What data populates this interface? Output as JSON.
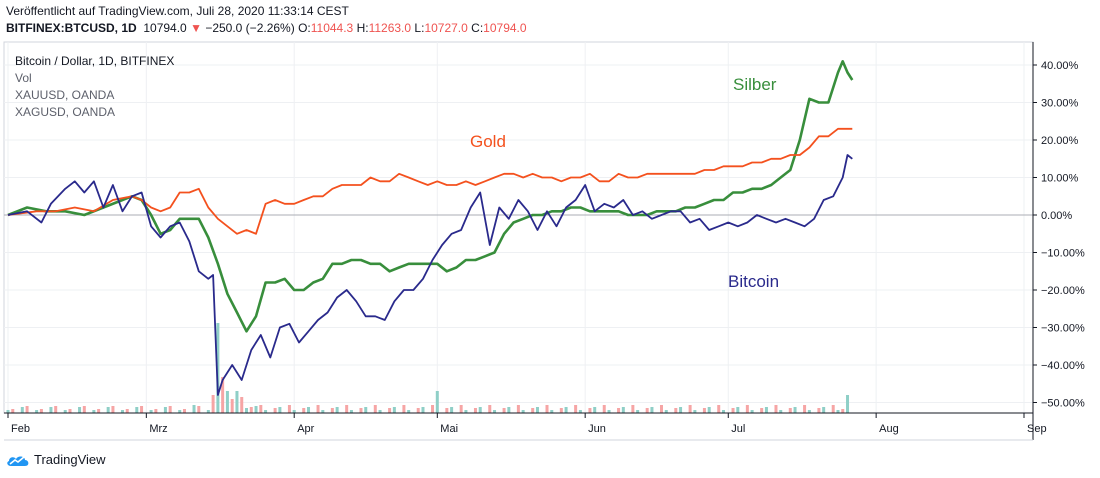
{
  "header": {
    "published": "Veröffentlicht auf TradingView.com, Juli 28, 2020 11:33:14 CEST",
    "symbol": "BITFINEX:BTCUSD, 1D",
    "last": "10794.0",
    "arrow": "▼",
    "change": "−250.0 (−2.26%)",
    "o_label": "O:",
    "o": "11044.3",
    "h_label": "H:",
    "h": "11263.0",
    "l_label": "L:",
    "l": "10727.0",
    "c_label": "C:",
    "c": "10794.0"
  },
  "legend": {
    "main": "Bitcoin / Dollar, 1D, BITFINEX",
    "vol": "Vol",
    "gold_symbol": "XAUUSD, OANDA",
    "silver_symbol": "XAGUSD, OANDA"
  },
  "brand": {
    "name": "TradingView"
  },
  "colors": {
    "bitcoin": "#2a2a8c",
    "gold": "#f4511e",
    "silver": "#388e3c",
    "vol_up": "#8fcfc7",
    "vol_down": "#f6a5a5",
    "grid": "#eef0f3",
    "axis": "#131722"
  },
  "chart_data": {
    "type": "line",
    "ylim": [
      -54,
      44
    ],
    "x_range": [
      0,
      220
    ],
    "y_ticks": [
      {
        "value": 40,
        "label": "40.00%"
      },
      {
        "value": 30,
        "label": "30.00%"
      },
      {
        "value": 20,
        "label": "20.00%"
      },
      {
        "value": 10,
        "label": "10.00%"
      },
      {
        "value": 0,
        "label": "0.00%"
      },
      {
        "value": -10,
        "label": "−10.00%"
      },
      {
        "value": -20,
        "label": "−20.00%"
      },
      {
        "value": -30,
        "label": "−30.00%"
      },
      {
        "value": -40,
        "label": "−40.00%"
      },
      {
        "value": -50,
        "label": "−50.00%"
      }
    ],
    "x_ticks": [
      {
        "day": 0,
        "label": "Feb"
      },
      {
        "day": 29,
        "label": "Mrz"
      },
      {
        "day": 60,
        "label": "Apr"
      },
      {
        "day": 90,
        "label": "Mai"
      },
      {
        "day": 121,
        "label": "Jun"
      },
      {
        "day": 151,
        "label": "Jul"
      },
      {
        "day": 182,
        "label": "Aug"
      },
      {
        "day": 213,
        "label": "Sep"
      }
    ],
    "series": [
      {
        "name": "Bitcoin",
        "key": "bitcoin",
        "points": [
          [
            0,
            0
          ],
          [
            4,
            1
          ],
          [
            7,
            -2
          ],
          [
            9,
            3
          ],
          [
            12,
            7
          ],
          [
            14,
            9
          ],
          [
            16,
            6
          ],
          [
            18,
            9
          ],
          [
            20,
            2
          ],
          [
            22,
            8
          ],
          [
            24,
            1
          ],
          [
            26,
            5
          ],
          [
            28,
            6
          ],
          [
            30,
            -3
          ],
          [
            32,
            -6
          ],
          [
            34,
            -3
          ],
          [
            36,
            -2
          ],
          [
            38,
            -7
          ],
          [
            40,
            -15
          ],
          [
            42,
            -17
          ],
          [
            43,
            -16
          ],
          [
            44,
            -48
          ],
          [
            45,
            -44
          ],
          [
            47,
            -40
          ],
          [
            49,
            -44
          ],
          [
            51,
            -36
          ],
          [
            53,
            -32
          ],
          [
            55,
            -38
          ],
          [
            57,
            -30
          ],
          [
            59,
            -29
          ],
          [
            61,
            -34
          ],
          [
            63,
            -31
          ],
          [
            65,
            -28
          ],
          [
            67,
            -26
          ],
          [
            69,
            -22
          ],
          [
            71,
            -20
          ],
          [
            73,
            -23
          ],
          [
            75,
            -27
          ],
          [
            77,
            -27
          ],
          [
            79,
            -28
          ],
          [
            81,
            -23
          ],
          [
            83,
            -20
          ],
          [
            85,
            -20
          ],
          [
            87,
            -17
          ],
          [
            89,
            -12
          ],
          [
            91,
            -8
          ],
          [
            93,
            -5
          ],
          [
            95,
            -4
          ],
          [
            97,
            2
          ],
          [
            99,
            6
          ],
          [
            101,
            -8
          ],
          [
            103,
            2
          ],
          [
            105,
            -1
          ],
          [
            107,
            4
          ],
          [
            109,
            1
          ],
          [
            111,
            -4
          ],
          [
            113,
            1
          ],
          [
            115,
            -3
          ],
          [
            117,
            2
          ],
          [
            119,
            4
          ],
          [
            121,
            8
          ],
          [
            123,
            1
          ],
          [
            125,
            3
          ],
          [
            127,
            2
          ],
          [
            129,
            4
          ],
          [
            131,
            0
          ],
          [
            133,
            1
          ],
          [
            135,
            -1
          ],
          [
            137,
            0
          ],
          [
            139,
            1
          ],
          [
            141,
            1
          ],
          [
            143,
            -2
          ],
          [
            145,
            -1
          ],
          [
            147,
            -4
          ],
          [
            149,
            -3
          ],
          [
            151,
            -2
          ],
          [
            153,
            -3
          ],
          [
            155,
            -2
          ],
          [
            157,
            0
          ],
          [
            159,
            -1
          ],
          [
            161,
            -2
          ],
          [
            163,
            -1
          ],
          [
            165,
            -2
          ],
          [
            167,
            -3
          ],
          [
            169,
            -1
          ],
          [
            171,
            4
          ],
          [
            173,
            5
          ],
          [
            175,
            10
          ],
          [
            176,
            16
          ],
          [
            177,
            15
          ]
        ]
      },
      {
        "name": "Gold",
        "key": "gold",
        "points": [
          [
            0,
            0
          ],
          [
            6,
            1
          ],
          [
            10,
            1
          ],
          [
            14,
            2
          ],
          [
            18,
            1
          ],
          [
            22,
            4
          ],
          [
            26,
            5
          ],
          [
            28,
            4
          ],
          [
            30,
            2
          ],
          [
            32,
            1
          ],
          [
            34,
            2
          ],
          [
            36,
            6
          ],
          [
            38,
            6
          ],
          [
            40,
            7
          ],
          [
            42,
            2
          ],
          [
            44,
            -1
          ],
          [
            46,
            -3
          ],
          [
            48,
            -5
          ],
          [
            50,
            -4
          ],
          [
            52,
            -5
          ],
          [
            54,
            3
          ],
          [
            56,
            4
          ],
          [
            58,
            3
          ],
          [
            60,
            3
          ],
          [
            62,
            4
          ],
          [
            64,
            5
          ],
          [
            66,
            5
          ],
          [
            68,
            7
          ],
          [
            70,
            8
          ],
          [
            72,
            8
          ],
          [
            74,
            8
          ],
          [
            76,
            10
          ],
          [
            78,
            9
          ],
          [
            80,
            9
          ],
          [
            82,
            11
          ],
          [
            84,
            10
          ],
          [
            86,
            9
          ],
          [
            88,
            8
          ],
          [
            90,
            9
          ],
          [
            92,
            8
          ],
          [
            94,
            8
          ],
          [
            96,
            9
          ],
          [
            98,
            8
          ],
          [
            100,
            9
          ],
          [
            102,
            10
          ],
          [
            104,
            11
          ],
          [
            106,
            11
          ],
          [
            108,
            10
          ],
          [
            110,
            11
          ],
          [
            112,
            10
          ],
          [
            114,
            10
          ],
          [
            116,
            9
          ],
          [
            118,
            10
          ],
          [
            120,
            10
          ],
          [
            122,
            11
          ],
          [
            124,
            9
          ],
          [
            126,
            9
          ],
          [
            128,
            11
          ],
          [
            130,
            10
          ],
          [
            132,
            10
          ],
          [
            134,
            11
          ],
          [
            136,
            11
          ],
          [
            138,
            11
          ],
          [
            140,
            11
          ],
          [
            142,
            11
          ],
          [
            144,
            11
          ],
          [
            146,
            12
          ],
          [
            148,
            12
          ],
          [
            150,
            13
          ],
          [
            152,
            13
          ],
          [
            154,
            13
          ],
          [
            156,
            14
          ],
          [
            158,
            14
          ],
          [
            160,
            15
          ],
          [
            162,
            15
          ],
          [
            164,
            16
          ],
          [
            166,
            16
          ],
          [
            168,
            18
          ],
          [
            170,
            21
          ],
          [
            172,
            21
          ],
          [
            174,
            23
          ],
          [
            176,
            23
          ],
          [
            177,
            23
          ]
        ]
      },
      {
        "name": "Silber",
        "key": "silver",
        "points": [
          [
            0,
            0
          ],
          [
            4,
            2
          ],
          [
            8,
            1
          ],
          [
            12,
            1
          ],
          [
            16,
            0
          ],
          [
            20,
            2
          ],
          [
            24,
            4
          ],
          [
            26,
            5
          ],
          [
            28,
            4
          ],
          [
            30,
            0
          ],
          [
            32,
            -5
          ],
          [
            34,
            -4
          ],
          [
            36,
            -1
          ],
          [
            38,
            -1
          ],
          [
            40,
            -1
          ],
          [
            42,
            -6
          ],
          [
            44,
            -13
          ],
          [
            46,
            -21
          ],
          [
            48,
            -26
          ],
          [
            50,
            -31
          ],
          [
            52,
            -27
          ],
          [
            54,
            -18
          ],
          [
            56,
            -18
          ],
          [
            58,
            -17
          ],
          [
            60,
            -20
          ],
          [
            62,
            -20
          ],
          [
            64,
            -18
          ],
          [
            66,
            -17
          ],
          [
            68,
            -13
          ],
          [
            70,
            -13
          ],
          [
            72,
            -12
          ],
          [
            74,
            -12
          ],
          [
            76,
            -13
          ],
          [
            78,
            -13
          ],
          [
            80,
            -15
          ],
          [
            82,
            -14
          ],
          [
            84,
            -13
          ],
          [
            86,
            -13
          ],
          [
            88,
            -13
          ],
          [
            90,
            -13
          ],
          [
            92,
            -15
          ],
          [
            94,
            -14
          ],
          [
            96,
            -12
          ],
          [
            98,
            -12
          ],
          [
            100,
            -11
          ],
          [
            102,
            -10
          ],
          [
            104,
            -5
          ],
          [
            106,
            -2
          ],
          [
            108,
            -1
          ],
          [
            110,
            0
          ],
          [
            112,
            0
          ],
          [
            114,
            1
          ],
          [
            116,
            1
          ],
          [
            118,
            2
          ],
          [
            120,
            2
          ],
          [
            122,
            1
          ],
          [
            124,
            1
          ],
          [
            126,
            1
          ],
          [
            128,
            1
          ],
          [
            130,
            0
          ],
          [
            132,
            0
          ],
          [
            134,
            0
          ],
          [
            136,
            1
          ],
          [
            138,
            1
          ],
          [
            140,
            1
          ],
          [
            142,
            2
          ],
          [
            144,
            2
          ],
          [
            146,
            3
          ],
          [
            148,
            4
          ],
          [
            150,
            4
          ],
          [
            152,
            6
          ],
          [
            154,
            6
          ],
          [
            156,
            7
          ],
          [
            158,
            7
          ],
          [
            160,
            8
          ],
          [
            162,
            10
          ],
          [
            164,
            12
          ],
          [
            166,
            20
          ],
          [
            168,
            31
          ],
          [
            170,
            30
          ],
          [
            172,
            30
          ],
          [
            174,
            38
          ],
          [
            175,
            41
          ],
          [
            176,
            38
          ],
          [
            177,
            36
          ]
        ]
      }
    ],
    "volume": {
      "up": [
        0,
        3,
        6,
        9,
        12,
        15,
        18,
        21,
        24,
        27,
        30,
        33,
        36,
        39,
        42,
        44,
        46,
        48,
        50,
        52,
        54,
        57,
        60,
        63,
        66,
        69,
        72,
        75,
        78,
        81,
        84,
        87,
        90,
        93,
        96,
        99,
        102,
        105,
        108,
        111,
        114,
        117,
        120,
        123,
        126,
        129,
        132,
        135,
        138,
        141,
        144,
        147,
        150,
        153,
        156,
        159,
        162,
        165,
        168,
        171,
        174,
        176
      ],
      "down": [
        1,
        4,
        7,
        10,
        13,
        16,
        19,
        22,
        25,
        28,
        31,
        34,
        37,
        40,
        43,
        45,
        47,
        49,
        51,
        53,
        56,
        59,
        62,
        65,
        68,
        71,
        74,
        77,
        80,
        83,
        86,
        89,
        92,
        95,
        98,
        101,
        104,
        107,
        110,
        113,
        116,
        119,
        122,
        125,
        128,
        131,
        134,
        137,
        140,
        143,
        146,
        149,
        152,
        155,
        158,
        161,
        164,
        167,
        170,
        173,
        175
      ],
      "heights": {
        "44": 90,
        "45": 36,
        "46": 22,
        "47": 14,
        "48": 22,
        "49": 16,
        "43": 18,
        "90": 22,
        "91": 12,
        "121": 16,
        "176": 18,
        "177": 12,
        "38": 10,
        "39": 8
      }
    }
  },
  "series_labels": {
    "bitcoin": "Bitcoin",
    "gold": "Gold",
    "silver": "Silber"
  }
}
